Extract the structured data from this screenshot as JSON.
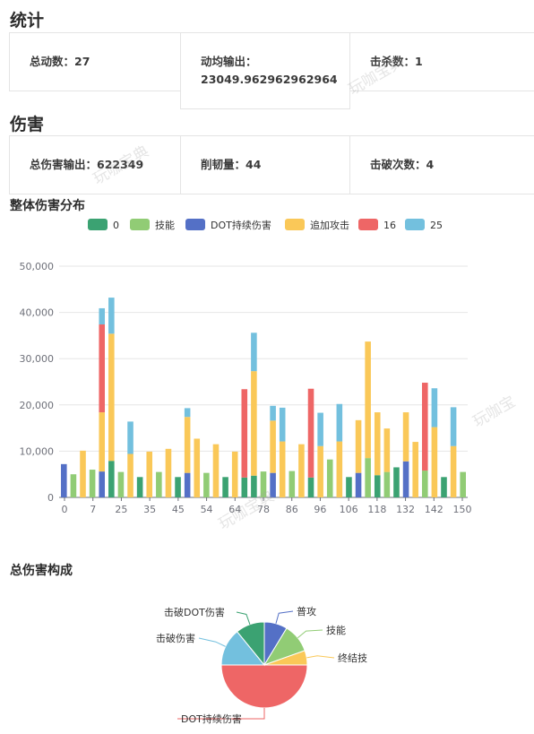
{
  "stats": {
    "title": "统计",
    "total_actions": "总动数：27",
    "avg_output_label": "动均输出：",
    "avg_output_value": "23049.962962962964",
    "kills": "击杀数：1"
  },
  "damage": {
    "title": "伤害",
    "total_output": "总伤害输出：622349",
    "toughness": "削韧量：44",
    "breaks": "击破次数：4"
  },
  "watermarks": [
    "玩咖宝典",
    "玩咖宝典",
    "玩咖宝",
    "玩咖宝典"
  ],
  "colors": {
    "0": "#3ba272",
    "技能": "#91cc75",
    "DOT持续伤害": "#5470c6",
    "追加攻击": "#fac858",
    "16": "#ee6666",
    "25": "#73c0de"
  },
  "chart_data": [
    {
      "type": "bar",
      "stacked": true,
      "title": "整体伤害分布",
      "legend_position": "top-center",
      "ylim": [
        0,
        50000
      ],
      "yticks": [
        "0",
        "10,000",
        "20,000",
        "30,000",
        "40,000",
        "50,000"
      ],
      "x_tick_labels": [
        "0",
        "7",
        "25",
        "35",
        "45",
        "54",
        "64",
        "78",
        "86",
        "96",
        "106",
        "118",
        "132",
        "142",
        "150"
      ],
      "grid": true,
      "series_names": [
        "0",
        "技能",
        "DOT持续伤害",
        "追加攻击",
        "16",
        "25"
      ],
      "bars": [
        {
          "DOT持续伤害": 7200
        },
        {
          "技能": 5000
        },
        {
          "追加攻击": 10100
        },
        {
          "技能": 6000
        },
        {
          "DOT持续伤害": 5600,
          "追加攻击": 12800,
          "16": 19000,
          "25": 3500
        },
        {
          "追加攻击": 27500,
          "25": 7800,
          "0": 7900
        },
        {
          "技能": 5500
        },
        {
          "追加攻击": 9400,
          "25": 7000
        },
        {
          "0": 4400
        },
        {
          "追加攻击": 9900
        },
        {
          "技能": 5500
        },
        {
          "追加攻击": 10500
        },
        {
          "0": 4400
        },
        {
          "DOT持续伤害": 5300,
          "追加攻击": 12100,
          "25": 1900
        },
        {
          "追加攻击": 12700
        },
        {
          "技能": 5300
        },
        {
          "追加攻击": 11500
        },
        {
          "0": 4400
        },
        {
          "追加攻击": 9900
        },
        {
          "16": 19100,
          "0": 4300
        },
        {
          "追加攻击": 22600,
          "25": 8300,
          "0": 4700
        },
        {
          "技能": 5600
        },
        {
          "DOT持续伤害": 5300,
          "追加攻击": 11300,
          "25": 3200
        },
        {
          "追加攻击": 12100,
          "25": 7300
        },
        {
          "技能": 5700
        },
        {
          "追加攻击": 11500
        },
        {
          "16": 19200,
          "0": 4300
        },
        {
          "追加攻击": 11100,
          "25": 7200
        },
        {
          "技能": 8200
        },
        {
          "追加攻击": 12100,
          "25": 8100
        },
        {
          "0": 4400
        },
        {
          "DOT持续伤害": 5300,
          "追加攻击": 11400
        },
        {
          "技能": 8500,
          "追加攻击": 25200
        },
        {
          "追加攻击": 13600,
          "0": 4800
        },
        {
          "技能": 5500,
          "追加攻击": 9400
        },
        {
          "0": 6500
        },
        {
          "DOT持续伤害": 7800,
          "追加攻击": 10600
        },
        {
          "追加攻击": 12000
        },
        {
          "技能": 5800,
          "16": 19000
        },
        {
          "追加攻击": 15200,
          "25": 8400
        },
        {
          "0": 4400
        },
        {
          "追加攻击": 11100,
          "25": 8400
        },
        {
          "技能": 5500
        }
      ]
    },
    {
      "type": "pie",
      "title": "总伤害构成",
      "slices": [
        {
          "label": "普攻",
          "value": 40,
          "color": "#5470c6"
        },
        {
          "label": "技能",
          "value": 50,
          "color": "#91cc75"
        },
        {
          "label": "终结技",
          "value": 25,
          "color": "#fac858"
        },
        {
          "label": "DOT持续伤害",
          "value": 230,
          "color": "#ee6666"
        },
        {
          "label": "击破伤害",
          "value": 65,
          "color": "#73c0de"
        },
        {
          "label": "击破DOT伤害",
          "value": 50,
          "color": "#3ba272"
        }
      ]
    }
  ]
}
